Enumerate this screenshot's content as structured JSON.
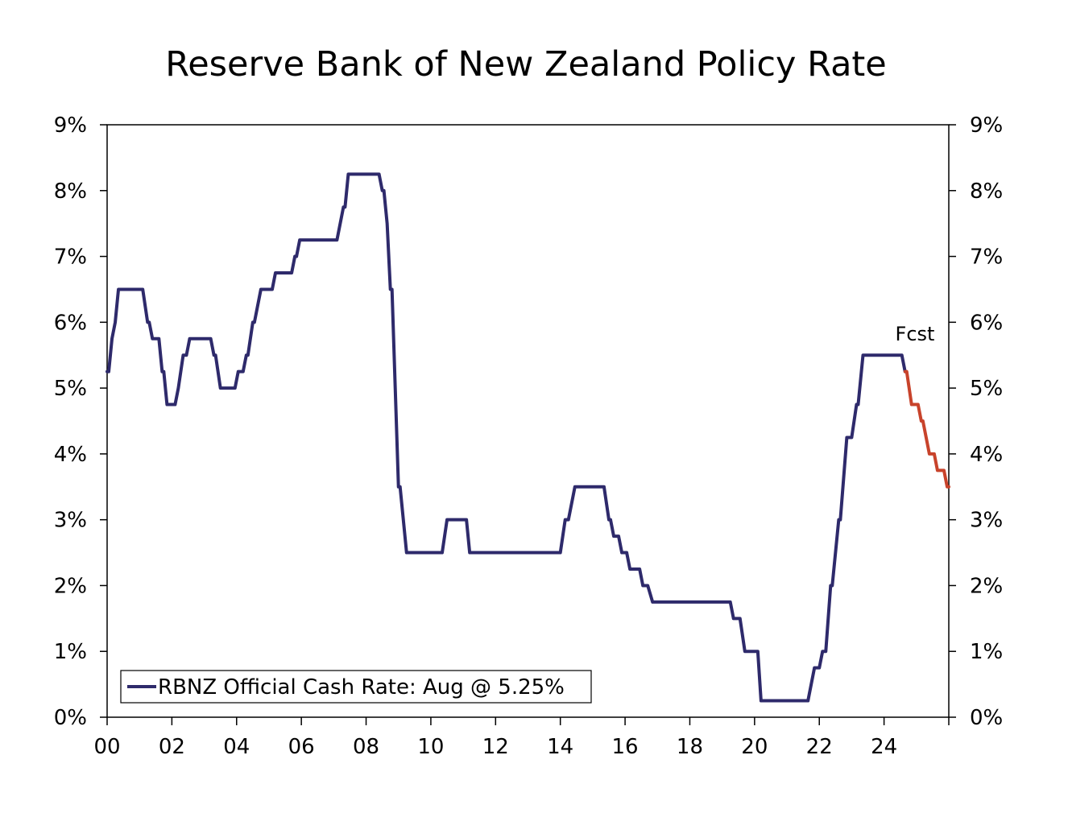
{
  "colors": {
    "actual": "#2e2a6b",
    "forecast": "#c8432b",
    "axis": "#000000"
  },
  "chart_data": {
    "type": "line",
    "title": "Reserve Bank of New Zealand Policy Rate",
    "xlabel": "",
    "ylabel": "",
    "xlim": [
      2000,
      2026
    ],
    "ylim": [
      0,
      9
    ],
    "x_tick_values": [
      2000,
      2002,
      2004,
      2006,
      2008,
      2010,
      2012,
      2014,
      2016,
      2018,
      2020,
      2022,
      2024
    ],
    "x_tick_labels": [
      "00",
      "02",
      "04",
      "06",
      "08",
      "10",
      "12",
      "14",
      "16",
      "18",
      "20",
      "22",
      "24"
    ],
    "y_tick_values": [
      0,
      1,
      2,
      3,
      4,
      5,
      6,
      7,
      8,
      9
    ],
    "y_tick_labels": [
      "0%",
      "1%",
      "2%",
      "3%",
      "4%",
      "5%",
      "6%",
      "7%",
      "8%",
      "9%"
    ],
    "grid": false,
    "legend_position": "bottom-left",
    "annotation": "Fcst",
    "series": [
      {
        "name": "RBNZ Official Cash Rate: Aug @ 5.25%",
        "role": "actual",
        "points": [
          [
            2000.0,
            5.25
          ],
          [
            2000.05,
            5.25
          ],
          [
            2000.15,
            5.75
          ],
          [
            2000.25,
            6.0
          ],
          [
            2000.35,
            6.5
          ],
          [
            2001.1,
            6.5
          ],
          [
            2001.25,
            6.0
          ],
          [
            2001.3,
            6.0
          ],
          [
            2001.4,
            5.75
          ],
          [
            2001.6,
            5.75
          ],
          [
            2001.7,
            5.25
          ],
          [
            2001.75,
            5.25
          ],
          [
            2001.85,
            4.75
          ],
          [
            2002.1,
            4.75
          ],
          [
            2002.2,
            5.0
          ],
          [
            2002.35,
            5.5
          ],
          [
            2002.45,
            5.5
          ],
          [
            2002.55,
            5.75
          ],
          [
            2003.2,
            5.75
          ],
          [
            2003.3,
            5.5
          ],
          [
            2003.35,
            5.5
          ],
          [
            2003.5,
            5.0
          ],
          [
            2003.95,
            5.0
          ],
          [
            2004.05,
            5.25
          ],
          [
            2004.2,
            5.25
          ],
          [
            2004.3,
            5.5
          ],
          [
            2004.35,
            5.5
          ],
          [
            2004.5,
            6.0
          ],
          [
            2004.55,
            6.0
          ],
          [
            2004.75,
            6.5
          ],
          [
            2005.1,
            6.5
          ],
          [
            2005.2,
            6.75
          ],
          [
            2005.7,
            6.75
          ],
          [
            2005.8,
            7.0
          ],
          [
            2005.85,
            7.0
          ],
          [
            2005.95,
            7.25
          ],
          [
            2007.1,
            7.25
          ],
          [
            2007.3,
            7.75
          ],
          [
            2007.35,
            7.75
          ],
          [
            2007.45,
            8.25
          ],
          [
            2008.4,
            8.25
          ],
          [
            2008.5,
            8.0
          ],
          [
            2008.55,
            8.0
          ],
          [
            2008.65,
            7.5
          ],
          [
            2008.75,
            6.5
          ],
          [
            2008.8,
            6.5
          ],
          [
            2008.9,
            5.0
          ],
          [
            2009.0,
            3.5
          ],
          [
            2009.05,
            3.5
          ],
          [
            2009.25,
            2.5
          ],
          [
            2010.35,
            2.5
          ],
          [
            2010.5,
            3.0
          ],
          [
            2011.1,
            3.0
          ],
          [
            2011.2,
            2.5
          ],
          [
            2014.0,
            2.5
          ],
          [
            2014.15,
            3.0
          ],
          [
            2014.25,
            3.0
          ],
          [
            2014.45,
            3.5
          ],
          [
            2015.35,
            3.5
          ],
          [
            2015.5,
            3.0
          ],
          [
            2015.55,
            3.0
          ],
          [
            2015.65,
            2.75
          ],
          [
            2015.8,
            2.75
          ],
          [
            2015.9,
            2.5
          ],
          [
            2016.05,
            2.5
          ],
          [
            2016.15,
            2.25
          ],
          [
            2016.45,
            2.25
          ],
          [
            2016.55,
            2.0
          ],
          [
            2016.7,
            2.0
          ],
          [
            2016.85,
            1.75
          ],
          [
            2019.25,
            1.75
          ],
          [
            2019.35,
            1.5
          ],
          [
            2019.55,
            1.5
          ],
          [
            2019.7,
            1.0
          ],
          [
            2020.1,
            1.0
          ],
          [
            2020.2,
            0.25
          ],
          [
            2021.65,
            0.25
          ],
          [
            2021.85,
            0.75
          ],
          [
            2022.0,
            0.75
          ],
          [
            2022.1,
            1.0
          ],
          [
            2022.2,
            1.0
          ],
          [
            2022.35,
            2.0
          ],
          [
            2022.4,
            2.0
          ],
          [
            2022.6,
            3.0
          ],
          [
            2022.65,
            3.0
          ],
          [
            2022.85,
            4.25
          ],
          [
            2023.0,
            4.25
          ],
          [
            2023.15,
            4.75
          ],
          [
            2023.2,
            4.75
          ],
          [
            2023.35,
            5.5
          ],
          [
            2024.55,
            5.5
          ],
          [
            2024.65,
            5.25
          ]
        ]
      },
      {
        "name": "",
        "role": "forecast",
        "points": [
          [
            2024.65,
            5.25
          ],
          [
            2024.7,
            5.25
          ],
          [
            2024.85,
            4.75
          ],
          [
            2025.05,
            4.75
          ],
          [
            2025.15,
            4.5
          ],
          [
            2025.2,
            4.5
          ],
          [
            2025.4,
            4.0
          ],
          [
            2025.55,
            4.0
          ],
          [
            2025.65,
            3.75
          ],
          [
            2025.85,
            3.75
          ],
          [
            2025.95,
            3.5
          ],
          [
            2026.0,
            3.5
          ]
        ]
      }
    ]
  }
}
